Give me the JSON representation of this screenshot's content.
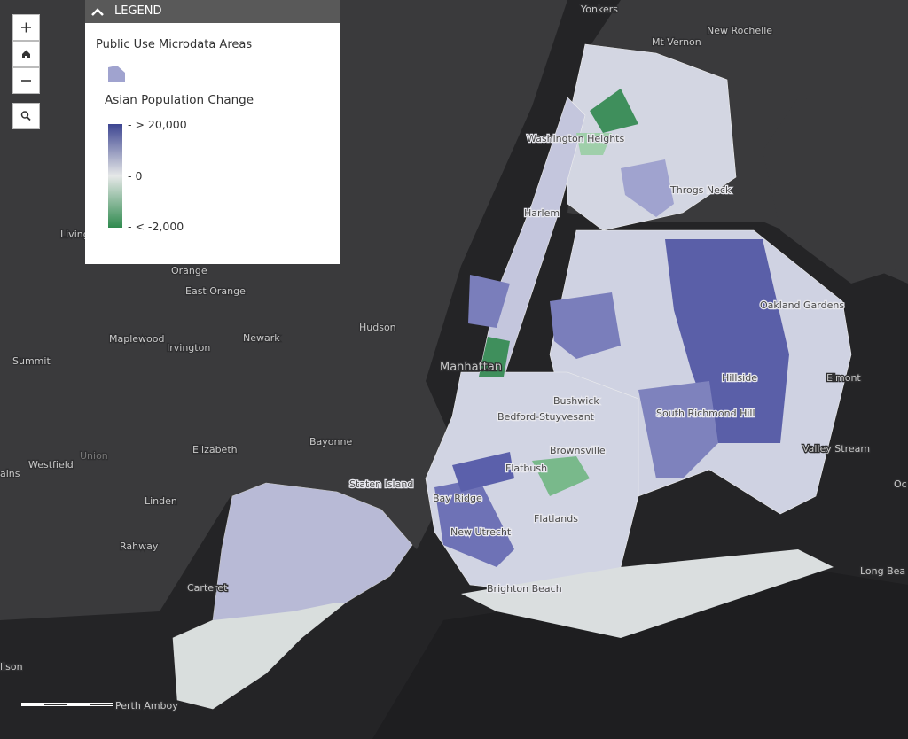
{
  "legend": {
    "title": "LEGEND",
    "layer": "Public Use Microdata Areas",
    "field": "Asian Population Change",
    "ramp_labels": [
      "> 20,000",
      "0",
      "< -2,000"
    ]
  },
  "places": [
    "Yonkers",
    "Mt Vernon",
    "New Rochelle",
    "Washington Heights",
    "Throgs Neck",
    "Harlem",
    "Living",
    "Orange",
    "East Orange",
    "Maplewood",
    "Irvington",
    "Newark",
    "Hudson",
    "Summit",
    "Manhattan",
    "Bushwick",
    "Bedford-Stuyvesant",
    "Brownsville",
    "Flatbush",
    "Oakland Gardens",
    "Hillside",
    "South Richmond Hill",
    "Elmont",
    "Valley Stream",
    "Bayonne",
    "Elizabeth",
    "Westfield",
    "Union",
    "Linden",
    "Staten Island",
    "Bay Ridge",
    "New Utrecht",
    "Flatlands",
    "Brighton Beach",
    "Rahway",
    "Carteret",
    "Perth Amboy",
    "Long Bea",
    "ains",
    "lison",
    "Oc"
  ]
}
